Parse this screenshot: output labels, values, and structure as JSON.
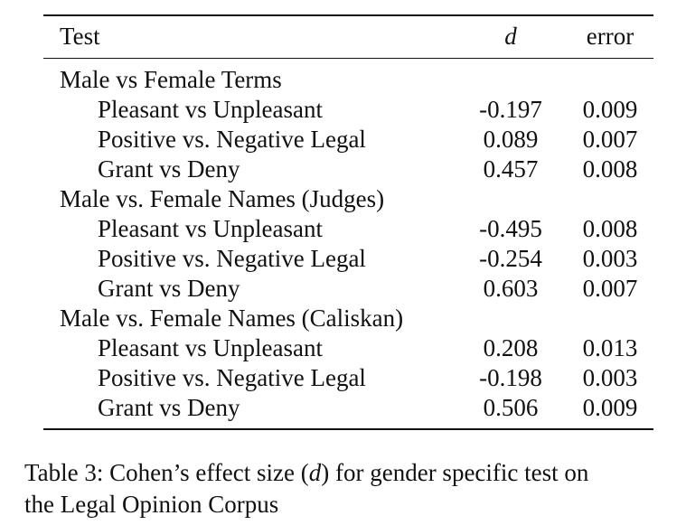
{
  "table": {
    "header": {
      "test": "Test",
      "d": "d",
      "error": "error"
    },
    "groups": [
      {
        "title": "Male vs Female Terms",
        "rows": [
          {
            "test": "Pleasant vs Unpleasant",
            "d": "-0.197",
            "error": "0.009"
          },
          {
            "test": "Positive vs. Negative Legal",
            "d": "0.089",
            "error": "0.007"
          },
          {
            "test": "Grant vs Deny",
            "d": "0.457",
            "error": "0.008"
          }
        ]
      },
      {
        "title": "Male vs. Female Names (Judges)",
        "rows": [
          {
            "test": "Pleasant vs Unpleasant",
            "d": "-0.495",
            "error": "0.008"
          },
          {
            "test": "Positive vs. Negative Legal",
            "d": "-0.254",
            "error": "0.003"
          },
          {
            "test": "Grant vs Deny",
            "d": "0.603",
            "error": "0.007"
          }
        ]
      },
      {
        "title": "Male vs. Female Names (Caliskan)",
        "rows": [
          {
            "test": "Pleasant vs Unpleasant",
            "d": "0.208",
            "error": "0.013"
          },
          {
            "test": "Positive vs. Negative Legal",
            "d": "-0.198",
            "error": "0.003"
          },
          {
            "test": "Grant vs Deny",
            "d": "0.506",
            "error": "0.009"
          }
        ]
      }
    ]
  },
  "caption": {
    "prefix": "Table 3: Cohen’s effect size (",
    "symbol": "d",
    "suffix": ") for gender specific test on",
    "line2": "the Legal Opinion Corpus"
  }
}
